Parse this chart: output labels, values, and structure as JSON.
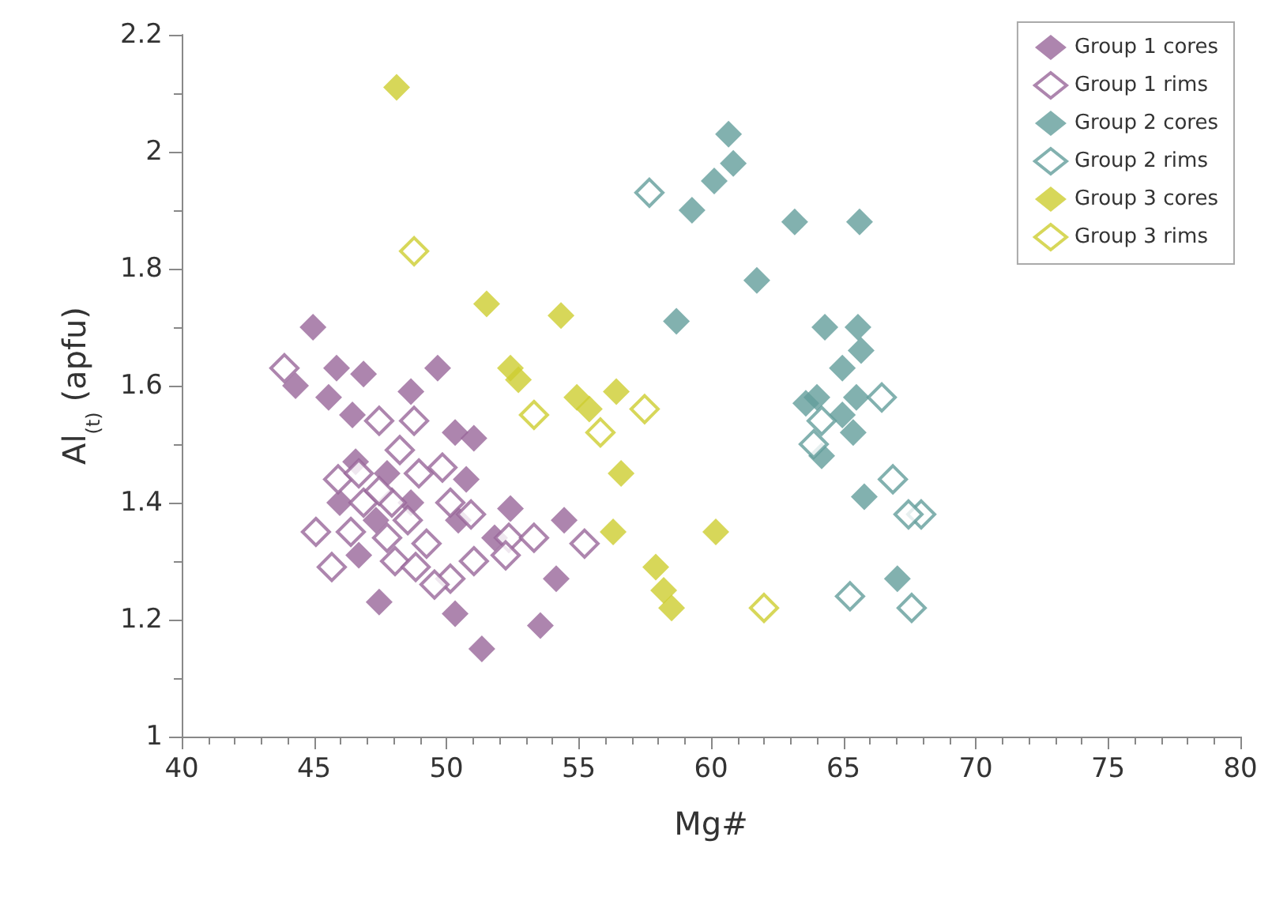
{
  "chart_data": {
    "type": "scatter",
    "xlabel": "Mg#",
    "ylabel": "Al$_{(t)}$ (apfu)",
    "xlim": [
      40,
      80
    ],
    "xticks": [
      40,
      45,
      50,
      55,
      60,
      65,
      70,
      75,
      80
    ],
    "ylim": [
      1,
      2.2
    ],
    "yticks": [
      1,
      1.2,
      1.4,
      1.6,
      1.8,
      2,
      2.2
    ],
    "grid": false,
    "legend": "top right",
    "series": [
      {
        "name": "Group 1 cores",
        "color": "#98669a",
        "marker": "diamond",
        "x": [
          44.96,
          44.3,
          45.85,
          46.87,
          49.67,
          45.55,
          46.45,
          48.66,
          50.33,
          51.04,
          46.57,
          50.75,
          52.42,
          46.69,
          47.46,
          50.33,
          51.34,
          54.45,
          54.15,
          53.55,
          51.82,
          47.76,
          48.66,
          50.45,
          45.97,
          47.34
        ],
        "values": [
          1.7,
          1.6,
          1.63,
          1.62,
          1.63,
          1.58,
          1.55,
          1.59,
          1.52,
          1.51,
          1.47,
          1.44,
          1.39,
          1.31,
          1.23,
          1.21,
          1.15,
          1.37,
          1.27,
          1.19,
          1.34,
          1.45,
          1.4,
          1.37,
          1.4,
          1.37
        ]
      },
      {
        "name": "Group 1 rims",
        "color": "#98669a",
        "marker": "diamond-open",
        "x": [
          43.88,
          45.07,
          45.91,
          46.69,
          47.46,
          48.78,
          48.24,
          46.87,
          47.94,
          48.96,
          49.85,
          46.39,
          47.76,
          48.54,
          49.25,
          50.15,
          50.93,
          51.04,
          48.06,
          48.84,
          50.15,
          49.55,
          52.36,
          53.31,
          55.22,
          52.24,
          45.67,
          47.46
        ],
        "values": [
          1.63,
          1.35,
          1.44,
          1.45,
          1.54,
          1.54,
          1.49,
          1.4,
          1.4,
          1.45,
          1.46,
          1.35,
          1.34,
          1.37,
          1.33,
          1.4,
          1.38,
          1.3,
          1.3,
          1.29,
          1.27,
          1.26,
          1.34,
          1.34,
          1.33,
          1.31,
          1.29,
          1.42
        ]
      },
      {
        "name": "Group 2 cores",
        "color": "#639d9b",
        "marker": "diamond",
        "x": [
          60.66,
          60.84,
          60.12,
          59.28,
          58.69,
          63.16,
          65.61,
          61.73,
          64.3,
          65.55,
          65.67,
          64.96,
          64,
          65.49,
          63.58,
          64.96,
          65.37,
          64.18,
          65.79,
          67.04
        ],
        "values": [
          2.03,
          1.98,
          1.95,
          1.9,
          1.71,
          1.88,
          1.88,
          1.78,
          1.7,
          1.7,
          1.66,
          1.63,
          1.58,
          1.58,
          1.57,
          1.55,
          1.52,
          1.48,
          1.41,
          1.27
        ]
      },
      {
        "name": "Group 2 rims",
        "color": "#639d9b",
        "marker": "diamond-open",
        "x": [
          57.67,
          66.45,
          66.87,
          67.94,
          67.46,
          65.25,
          67.58,
          63.88,
          64.18
        ],
        "values": [
          1.93,
          1.58,
          1.44,
          1.38,
          1.38,
          1.24,
          1.22,
          1.5,
          1.54
        ]
      },
      {
        "name": "Group 3 cores",
        "color": "#cdcd30",
        "marker": "diamond",
        "x": [
          48.12,
          51.52,
          54.33,
          52.42,
          52.72,
          54.93,
          55.4,
          56.42,
          56.6,
          56.3,
          60.18,
          57.91,
          58.21,
          58.51
        ],
        "values": [
          2.11,
          1.74,
          1.72,
          1.63,
          1.61,
          1.58,
          1.56,
          1.59,
          1.45,
          1.35,
          1.35,
          1.29,
          1.25,
          1.22
        ]
      },
      {
        "name": "Group 3 rims",
        "color": "#cdcd30",
        "marker": "diamond-open",
        "x": [
          48.78,
          53.31,
          57.49,
          55.82,
          62
        ],
        "values": [
          1.83,
          1.55,
          1.56,
          1.52,
          1.22
        ]
      }
    ]
  }
}
